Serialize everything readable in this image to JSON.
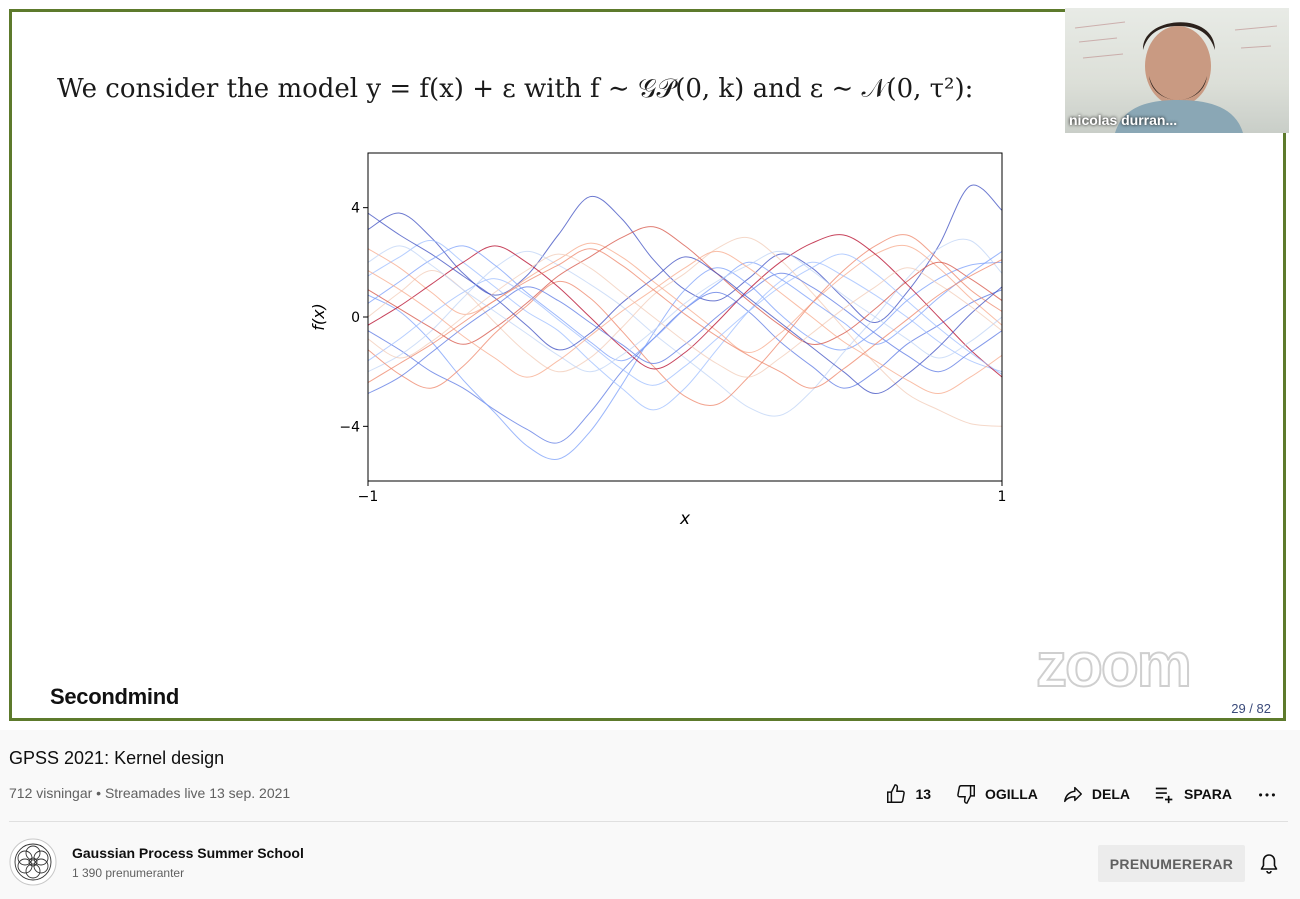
{
  "slide": {
    "title": "We consider the model y = f(x) + ε with f ∼ 𝒢𝒫(0, k) and ε ∼ 𝒩(0, τ²):",
    "brand": "Secondmind",
    "watermark": "zoom",
    "page_counter": "29 / 82"
  },
  "webcam": {
    "name": "nicolas durran..."
  },
  "chart_data": {
    "type": "line",
    "xlabel": "x",
    "ylabel": "f(x)",
    "xlim": [
      -1,
      1
    ],
    "ylim": [
      -6,
      6
    ],
    "x_ticks": [
      "−1",
      "1"
    ],
    "y_ticks": [
      {
        "value": 4,
        "label": "4"
      },
      {
        "value": 0,
        "label": "0"
      },
      {
        "value": -4,
        "label": "−4"
      }
    ],
    "x": [
      -1.0,
      -0.9,
      -0.8,
      -0.7,
      -0.6,
      -0.5,
      -0.4,
      -0.3,
      -0.2,
      -0.1,
      0.0,
      0.1,
      0.2,
      0.3,
      0.4,
      0.5,
      0.6,
      0.7,
      0.8,
      0.9,
      1.0
    ],
    "grid": false,
    "legend": "none",
    "colors": [
      "#3b4cc0",
      "#5977e3",
      "#7b9ff9",
      "#9ebeff",
      "#c0d4f5",
      "#f2cbb7",
      "#f7a889",
      "#ee8468",
      "#d65244",
      "#b40426"
    ],
    "series": [
      {
        "values": [
          3.2,
          3.8,
          2.9,
          1.6,
          0.8,
          1.5,
          3.0,
          4.4,
          3.6,
          2.1,
          1.0,
          0.6,
          1.4,
          2.3,
          1.8,
          0.7,
          -0.2,
          0.9,
          2.6,
          4.8,
          3.9
        ]
      },
      {
        "values": [
          -0.5,
          -1.2,
          -2.0,
          -2.6,
          -3.4,
          -4.1,
          -4.6,
          -3.5,
          -2.0,
          -0.8,
          0.3,
          0.9,
          0.2,
          -0.9,
          -1.8,
          -2.6,
          -2.0,
          -1.0,
          -0.3,
          0.5,
          1.0
        ]
      },
      {
        "values": [
          0.8,
          0.2,
          -0.9,
          -2.3,
          -3.5,
          -4.7,
          -5.2,
          -4.2,
          -2.5,
          -0.6,
          1.0,
          1.8,
          1.2,
          0.1,
          -0.8,
          -1.2,
          -0.5,
          0.6,
          1.4,
          1.9,
          2.0
        ]
      },
      {
        "values": [
          1.5,
          2.2,
          2.8,
          2.0,
          1.1,
          0.2,
          -0.5,
          -1.6,
          -2.6,
          -3.4,
          -2.6,
          -1.2,
          0.2,
          1.3,
          2.0,
          1.5,
          0.8,
          0.0,
          -0.9,
          -1.6,
          -2.0
        ]
      },
      {
        "values": [
          -2.0,
          -1.4,
          -0.5,
          0.7,
          1.8,
          2.4,
          1.9,
          1.2,
          0.4,
          -0.6,
          -1.5,
          -2.4,
          -3.3,
          -3.6,
          -2.7,
          -1.3,
          0.0,
          1.4,
          2.5,
          2.8,
          1.6
        ]
      },
      {
        "values": [
          0.0,
          0.9,
          1.7,
          1.0,
          -0.2,
          -1.3,
          -2.0,
          -1.5,
          -0.4,
          0.8,
          1.6,
          2.5,
          2.9,
          2.1,
          0.9,
          -0.4,
          -1.7,
          -2.8,
          -3.4,
          -3.9,
          -4.0
        ]
      },
      {
        "values": [
          2.5,
          1.8,
          0.9,
          0.1,
          0.6,
          1.4,
          2.1,
          2.7,
          2.2,
          1.3,
          0.4,
          -0.5,
          -1.3,
          -0.6,
          0.5,
          1.5,
          2.3,
          2.6,
          1.8,
          0.7,
          -0.3
        ]
      },
      {
        "values": [
          -1.2,
          -2.1,
          -2.6,
          -1.8,
          -0.6,
          0.4,
          1.3,
          0.7,
          -0.5,
          -1.8,
          -2.9,
          -3.2,
          -2.2,
          -0.9,
          0.5,
          1.7,
          2.6,
          3.0,
          2.1,
          1.0,
          0.2
        ]
      },
      {
        "values": [
          1.0,
          0.3,
          -0.4,
          -1.0,
          -0.4,
          0.5,
          1.5,
          2.2,
          2.9,
          3.3,
          2.6,
          1.6,
          0.6,
          -0.3,
          -1.0,
          -0.6,
          0.3,
          1.3,
          2.0,
          1.4,
          0.6
        ]
      },
      {
        "values": [
          -0.3,
          0.4,
          1.2,
          2.0,
          2.6,
          2.0,
          1.1,
          0.0,
          -1.1,
          -1.9,
          -1.3,
          -0.2,
          1.0,
          2.0,
          2.7,
          3.0,
          2.3,
          1.2,
          0.0,
          -1.2,
          -2.2
        ]
      },
      {
        "values": [
          3.8,
          3.0,
          2.3,
          1.5,
          0.7,
          -0.3,
          -1.2,
          -0.6,
          0.5,
          1.4,
          2.2,
          1.6,
          0.7,
          -0.2,
          -1.1,
          -2.0,
          -2.8,
          -2.1,
          -1.1,
          0.1,
          1.1
        ]
      },
      {
        "values": [
          -2.8,
          -2.2,
          -1.3,
          -0.4,
          0.4,
          1.1,
          0.6,
          -0.2,
          -1.0,
          -1.7,
          -1.0,
          0.0,
          0.9,
          1.6,
          1.1,
          0.3,
          -0.6,
          -1.4,
          -2.0,
          -1.3,
          -0.5
        ]
      },
      {
        "values": [
          0.5,
          1.3,
          2.1,
          2.6,
          1.9,
          0.9,
          0.0,
          -0.9,
          -1.6,
          -0.8,
          0.3,
          1.2,
          2.0,
          1.4,
          0.6,
          -0.2,
          -1.0,
          -0.3,
          0.7,
          1.6,
          2.4
        ]
      },
      {
        "values": [
          -1.6,
          -0.8,
          0.1,
          0.9,
          1.4,
          0.8,
          -0.1,
          -1.0,
          -1.9,
          -2.5,
          -1.8,
          -0.8,
          0.2,
          1.1,
          1.8,
          2.3,
          1.6,
          0.6,
          -0.4,
          -1.3,
          -2.1
        ]
      },
      {
        "values": [
          2.0,
          2.6,
          1.9,
          1.0,
          0.2,
          -0.6,
          -1.4,
          -2.0,
          -1.4,
          -0.5,
          0.5,
          1.3,
          1.9,
          2.4,
          1.7,
          0.8,
          0.0,
          -0.8,
          -1.5,
          -0.9,
          0.0
        ]
      },
      {
        "values": [
          -0.8,
          -1.5,
          -0.9,
          0.0,
          0.9,
          1.7,
          2.3,
          1.8,
          0.9,
          0.0,
          -0.9,
          -1.7,
          -2.2,
          -1.5,
          -0.6,
          0.3,
          1.1,
          1.8,
          1.2,
          0.4,
          -0.5
        ]
      },
      {
        "values": [
          1.7,
          1.0,
          0.2,
          -0.7,
          -1.5,
          -2.2,
          -1.6,
          -0.7,
          0.2,
          1.0,
          1.8,
          2.4,
          1.8,
          0.9,
          0.0,
          -0.9,
          -1.6,
          -2.3,
          -2.8,
          -2.2,
          -1.4
        ]
      },
      {
        "values": [
          -2.4,
          -1.7,
          -1.0,
          -0.2,
          0.6,
          1.3,
          1.9,
          2.5,
          1.9,
          1.0,
          0.1,
          -0.7,
          -1.4,
          -2.0,
          -2.6,
          -1.9,
          -1.0,
          -0.1,
          0.8,
          1.5,
          2.1
        ]
      }
    ]
  },
  "video": {
    "title": "GPSS 2021: Kernel design",
    "meta": "712 visningar • Streamades live 13 sep. 2021"
  },
  "actions": {
    "like_count": "13",
    "dislike_label": "OGILLA",
    "share_label": "DELA",
    "save_label": "SPARA"
  },
  "channel": {
    "name": "Gaussian Process Summer School",
    "subscribers": "1 390 prenumeranter",
    "subscribe_label": "PRENUMERERAR"
  }
}
